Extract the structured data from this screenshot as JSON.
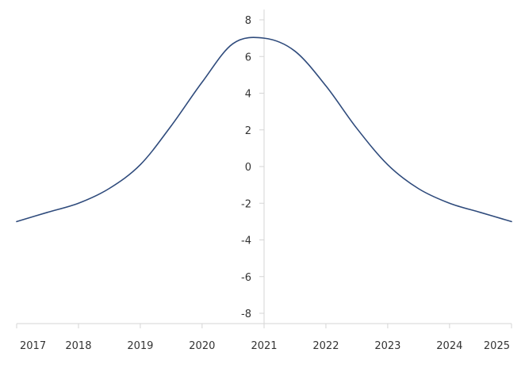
{
  "chart_data": {
    "type": "line",
    "title": "",
    "xlabel": "",
    "ylabel": "",
    "grid": false,
    "x_ticks": [
      "2017",
      "2018",
      "2019",
      "2020",
      "2021",
      "2022",
      "2023",
      "2024",
      "2025"
    ],
    "x_range": [
      "2017-01-01",
      "2025-01-01"
    ],
    "y_ticks": [
      -8,
      -6,
      -4,
      -2,
      0,
      2,
      4,
      6,
      8
    ],
    "y_range": [
      -8,
      8
    ],
    "line_color": "#2f4b7c",
    "series": [
      {
        "x": [
          "2017-01-01",
          "2017-07-01",
          "2018-01-01",
          "2018-07-01",
          "2019-01-01",
          "2019-07-01",
          "2020-01-01",
          "2020-07-01",
          "2021-01-01",
          "2021-07-01",
          "2022-01-01",
          "2022-07-01",
          "2023-01-01",
          "2023-07-01",
          "2024-01-01",
          "2024-07-01",
          "2025-01-01"
        ],
        "values": [
          -3.0,
          -2.5,
          -2.0,
          -1.2,
          0.1,
          2.2,
          4.6,
          6.7,
          7.0,
          6.3,
          4.4,
          2.1,
          0.1,
          -1.2,
          -2.0,
          -2.5,
          -3.0
        ]
      }
    ]
  }
}
